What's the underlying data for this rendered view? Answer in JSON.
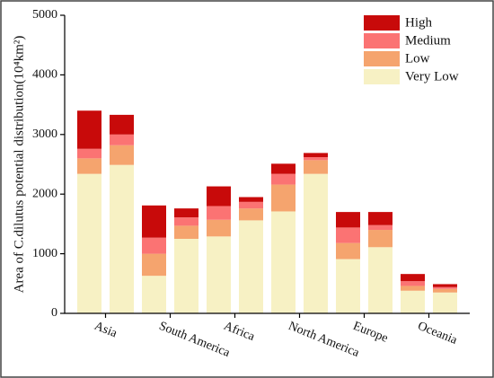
{
  "chart_data": {
    "type": "grouped-stacked-bar",
    "y_label": "Area of C.dilutus potential distribution(10⁴km²)",
    "categories": [
      "Asia",
      "South America",
      "Africa",
      "North America",
      "Europe",
      "Oceania"
    ],
    "series": [
      {
        "name": "Very Low",
        "color": "#f7f1c4",
        "values": [
          [
            2340,
            2490
          ],
          [
            630,
            1250
          ],
          [
            1290,
            1560
          ],
          [
            1710,
            2340
          ],
          [
            910,
            1110
          ],
          [
            380,
            350
          ]
        ]
      },
      {
        "name": "Low",
        "color": "#f5a46e",
        "values": [
          [
            260,
            330
          ],
          [
            370,
            220
          ],
          [
            280,
            200
          ],
          [
            450,
            230
          ],
          [
            270,
            290
          ],
          [
            80,
            60
          ]
        ]
      },
      {
        "name": "Medium",
        "color": "#fb7373",
        "values": [
          [
            160,
            180
          ],
          [
            270,
            140
          ],
          [
            230,
            110
          ],
          [
            180,
            50
          ],
          [
            260,
            80
          ],
          [
            80,
            30
          ]
        ]
      },
      {
        "name": "High",
        "color": "#c80a0a",
        "values": [
          [
            640,
            330
          ],
          [
            540,
            150
          ],
          [
            330,
            80
          ],
          [
            170,
            70
          ],
          [
            260,
            220
          ],
          [
            120,
            50
          ]
        ]
      }
    ],
    "ylim": [
      0,
      5000
    ],
    "yticks": [
      0,
      1000,
      2000,
      3000,
      4000,
      5000
    ],
    "legend": "top-right"
  }
}
